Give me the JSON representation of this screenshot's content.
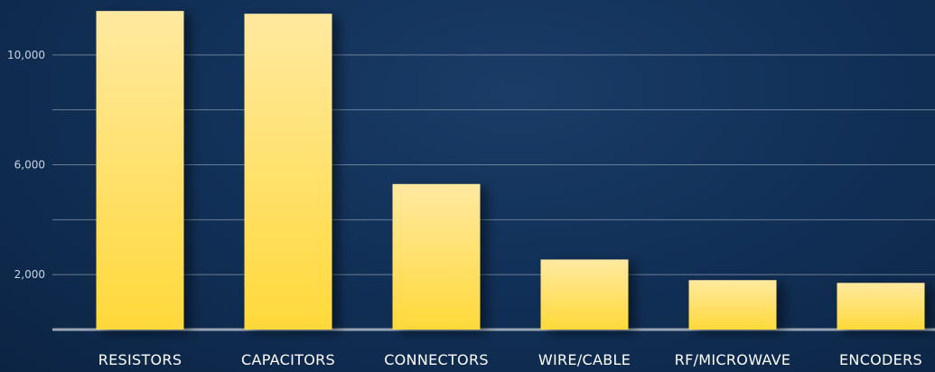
{
  "chart_data": {
    "type": "bar",
    "categories": [
      "RESISTORS",
      "CAPACITORS",
      "CONNECTORS",
      "WIRE/CABLE",
      "RF/MICROWAVE",
      "ENCODERS"
    ],
    "values": [
      11600,
      11500,
      5300,
      2550,
      1800,
      1700
    ],
    "ylim": [
      0,
      12000
    ],
    "y_ticks": [
      0,
      2000,
      4000,
      6000,
      8000,
      10000
    ],
    "y_tick_labels": [
      "",
      "2,000",
      "",
      "6,000",
      "",
      "10,000"
    ],
    "grid": true,
    "colors": {
      "bar_top": "#ffe9a0",
      "bar_bottom": "#ffd93a",
      "grid": "#8a98ab",
      "axis": "#9aa6b5"
    }
  }
}
